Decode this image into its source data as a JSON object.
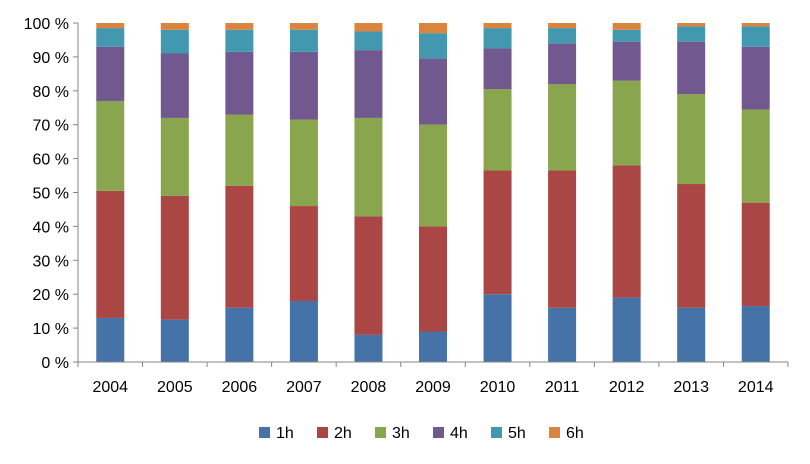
{
  "chart_data": {
    "type": "bar",
    "stacked": true,
    "percent": true,
    "categories": [
      "2004",
      "2005",
      "2006",
      "2007",
      "2008",
      "2009",
      "2010",
      "2011",
      "2012",
      "2013",
      "2014"
    ],
    "series": [
      {
        "name": "1h",
        "color": "#4572A7",
        "values": [
          13,
          12.5,
          16,
          18,
          8,
          9,
          20,
          16,
          19,
          16,
          16.5
        ]
      },
      {
        "name": "2h",
        "color": "#AA4643",
        "values": [
          37.5,
          36.5,
          36,
          28,
          35,
          31,
          36.5,
          40.5,
          39,
          36.5,
          30.5
        ]
      },
      {
        "name": "3h",
        "color": "#89A54E",
        "values": [
          26.5,
          23,
          21,
          25.5,
          29,
          30,
          24,
          25.5,
          25,
          26.5,
          27.5
        ]
      },
      {
        "name": "4h",
        "color": "#71588F",
        "values": [
          16,
          19,
          18.5,
          20,
          20,
          19.5,
          12,
          12,
          11.5,
          15.5,
          18.5
        ]
      },
      {
        "name": "5h",
        "color": "#4198AF",
        "values": [
          5.5,
          7,
          6.5,
          6.5,
          5.5,
          7.5,
          6,
          4.5,
          3.5,
          4.5,
          6
        ]
      },
      {
        "name": "6h",
        "color": "#DB843D",
        "values": [
          1.5,
          2,
          2,
          2,
          2.5,
          3,
          1.5,
          1.5,
          2,
          1,
          1
        ]
      }
    ],
    "ylim": [
      0,
      100
    ],
    "yticks": [
      "0 %",
      "10 %",
      "20 %",
      "30 %",
      "40 %",
      "50 %",
      "60 %",
      "70 %",
      "80 %",
      "90 %",
      "100 %"
    ],
    "title": "",
    "xlabel": "",
    "ylabel": "",
    "grid": false,
    "legend_position": "bottom"
  }
}
